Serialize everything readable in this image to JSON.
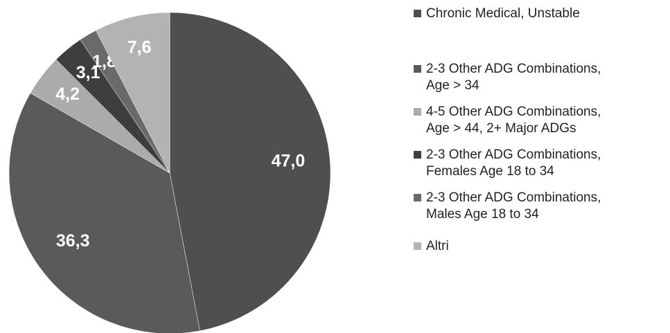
{
  "chart_data": {
    "type": "pie",
    "categories": [
      "Chronic Medical, Unstable",
      "2-3 Other ADG Combinations, Age > 34",
      "4-5 Other ADG Combinations, Age > 44, 2+ Major ADGs",
      "2-3 Other ADG Combinations, Females Age 18 to 34",
      "2-3 Other ADG Combinations, Males Age 18 to 34",
      "Altri"
    ],
    "values": [
      47.0,
      36.3,
      4.2,
      3.1,
      1.8,
      7.6
    ],
    "value_labels": [
      "47,0",
      "36,3",
      "4,2",
      "3,1",
      "1,8",
      "7,6"
    ],
    "colors": [
      "#4f4f4f",
      "#5a5a5a",
      "#ababab",
      "#3e3e3e",
      "#6a6a6a",
      "#b3b3b3"
    ]
  }
}
